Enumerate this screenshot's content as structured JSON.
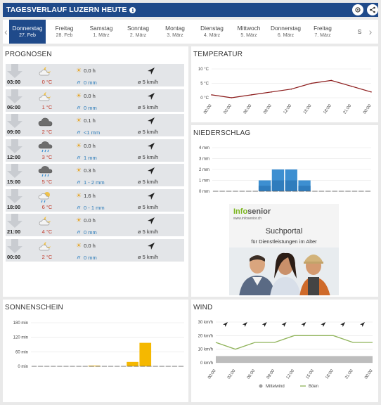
{
  "header": {
    "title": "TAGESVERLAUF LUZERN HEUTE",
    "info": "i"
  },
  "days": [
    {
      "name": "Donnerstag",
      "date": "27. Feb",
      "active": true
    },
    {
      "name": "Freitag",
      "date": "28. Feb"
    },
    {
      "name": "Samstag",
      "date": "1. März"
    },
    {
      "name": "Sonntag",
      "date": "2. März"
    },
    {
      "name": "Montag",
      "date": "3. März"
    },
    {
      "name": "Dienstag",
      "date": "4. März"
    },
    {
      "name": "Mittwoch",
      "date": "5. März"
    },
    {
      "name": "Donnerstag",
      "date": "6. März"
    },
    {
      "name": "Freitag",
      "date": "7. März"
    },
    {
      "name": "S",
      "date": ""
    }
  ],
  "prognosen": {
    "title": "PROGNOSEN",
    "rows": [
      {
        "time": "03:00",
        "temp": "0 °C",
        "sun": "0.0 h",
        "rain": "0 mm",
        "wind": "ø 5 km/h",
        "icon": "cloud-moon-icon"
      },
      {
        "time": "06:00",
        "temp": "1 °C",
        "sun": "0.0 h",
        "rain": "0 mm",
        "wind": "ø 5 km/h",
        "icon": "cloud-moon-icon"
      },
      {
        "time": "09:00",
        "temp": "2 °C",
        "sun": "0.1 h",
        "rain": "<1 mm",
        "wind": "ø 5 km/h",
        "icon": "cloud-icon"
      },
      {
        "time": "12:00",
        "temp": "3 °C",
        "sun": "0.0 h",
        "rain": "1 mm",
        "wind": "ø 5 km/h",
        "icon": "cloud-rain-icon"
      },
      {
        "time": "15:00",
        "temp": "5 °C",
        "sun": "0.3 h",
        "rain": "1 - 2 mm",
        "wind": "ø 5 km/h",
        "icon": "cloud-rain-icon"
      },
      {
        "time": "18:00",
        "temp": "6 °C",
        "sun": "1.6 h",
        "rain": "0 - 1 mm",
        "wind": "ø 5 km/h",
        "icon": "sun-cloud-rain-icon"
      },
      {
        "time": "21:00",
        "temp": "4 °C",
        "sun": "0.0 h",
        "rain": "0 mm",
        "wind": "ø 5 km/h",
        "icon": "cloud-moon-icon"
      },
      {
        "time": "00:00",
        "temp": "2 °C",
        "sun": "0.0 h",
        "rain": "0 mm",
        "wind": "ø 5 km/h",
        "icon": "cloud-moon-icon"
      }
    ]
  },
  "ad": {
    "brand_info": "Info",
    "brand_senior": "senior",
    "url": "www.infosenior.ch",
    "headline": "Suchportal",
    "subline": "für Dienstleistungen im Alter"
  },
  "colors": {
    "header": "#1f4a8a",
    "temp_line": "#8b1a1a",
    "rain_bar": "#3d8fd1",
    "sun_bar": "#f5b800",
    "wind_line": "#8fb35a"
  },
  "chart_data": [
    {
      "id": "temperatur",
      "title": "TEMPERATUR",
      "type": "line",
      "x": [
        "00:00",
        "03:00",
        "06:00",
        "09:00",
        "12:00",
        "15:00",
        "18:00",
        "21:00",
        "00:00"
      ],
      "y_ticks": [
        "10 °C",
        "5 °C",
        "0 °C"
      ],
      "ylim": [
        0,
        10
      ],
      "values": [
        1,
        0,
        1,
        2,
        3,
        5,
        6,
        4,
        2
      ]
    },
    {
      "id": "niederschlag",
      "title": "NIEDERSCHLAG",
      "type": "bar",
      "y_ticks": [
        "4 mm",
        "3 mm",
        "2 mm",
        "1 mm",
        "0 mm"
      ],
      "ylim": [
        0,
        4
      ],
      "values": [
        0,
        0,
        0,
        0,
        0,
        0,
        0,
        1,
        0,
        2,
        0,
        2,
        0,
        1,
        0,
        0,
        0,
        0,
        0,
        0,
        0,
        0,
        0,
        0
      ]
    },
    {
      "id": "sonnenschein",
      "title": "SONNENSCHEIN",
      "type": "bar",
      "y_ticks": [
        "180 min",
        "120 min",
        "60 min",
        "0 min"
      ],
      "ylim": [
        0,
        180
      ],
      "values": [
        0,
        0,
        0,
        0,
        0,
        0,
        0,
        0,
        0,
        3,
        0,
        0,
        0,
        0,
        0,
        18,
        0,
        97,
        0,
        0,
        0,
        0,
        0,
        0
      ]
    },
    {
      "id": "wind",
      "title": "WIND",
      "type": "line",
      "x": [
        "00:00",
        "03:00",
        "06:00",
        "09:00",
        "12:00",
        "15:00",
        "18:00",
        "21:00",
        "00:00"
      ],
      "y_ticks": [
        "30 km/h",
        "20 km/h",
        "10 km/h",
        "0 km/h"
      ],
      "ylim": [
        0,
        30
      ],
      "mittelwind": [
        5,
        5,
        5,
        5,
        5,
        5,
        5,
        5,
        5
      ],
      "boeen": [
        15,
        10,
        15,
        15,
        20,
        20,
        20,
        15,
        15
      ],
      "legend": [
        "Mittelwind",
        "Böen"
      ]
    }
  ]
}
